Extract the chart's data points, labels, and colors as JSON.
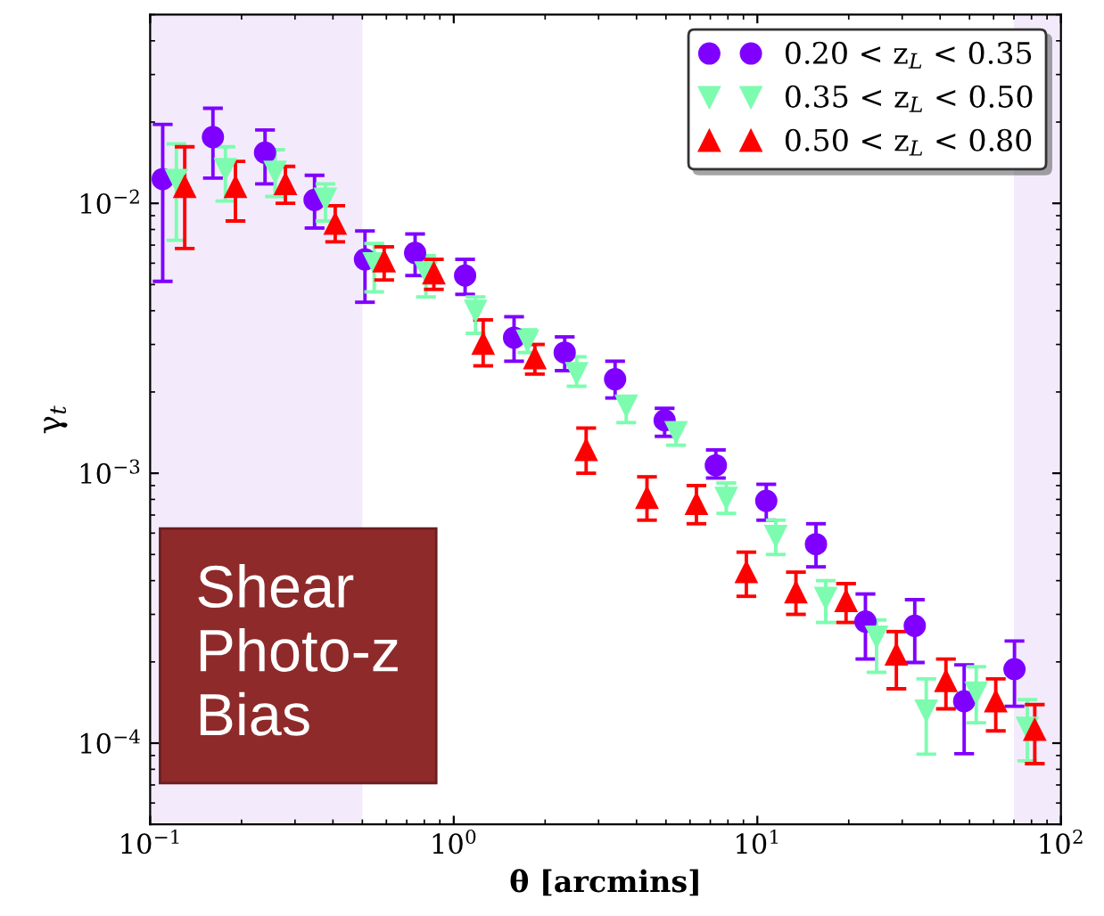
{
  "chart_data": {
    "type": "scatter",
    "xlabel": "θ [arcmins]",
    "ylabel": "γ$_{t}$",
    "log": "xy",
    "xlim": [
      0.1,
      100
    ],
    "ylim": [
      5e-05,
      0.05
    ],
    "xticks": [
      {
        "value": 0.1,
        "label": "10$^{−1}$"
      },
      {
        "value": 1,
        "label": "10$^{0}$"
      },
      {
        "value": 10,
        "label": "10$^{1}$"
      },
      {
        "value": 100,
        "label": "10$^{2}$"
      }
    ],
    "yticks": [
      {
        "value": 0.0001,
        "label": "10$^{−4}$"
      },
      {
        "value": 0.001,
        "label": "10$^{−3}$"
      },
      {
        "value": 0.01,
        "label": "10$^{−2}$"
      }
    ],
    "grid": false,
    "legend": "top right",
    "bands": [
      {
        "axis": "x",
        "from": 0.1,
        "to": 0.5,
        "color": "#f3ebfc"
      },
      {
        "axis": "x",
        "from": 70,
        "to": 100,
        "color": "#f3ebfc"
      }
    ],
    "annotations": [
      "Shear\nPhoto-z\nBias"
    ],
    "series": [
      {
        "name": "0.20 < z$_{L}$ < 0.35",
        "color": "#7f00ff",
        "marker": "circle",
        "x": [
          0.11,
          0.161,
          0.239,
          0.348,
          0.51,
          0.746,
          1.09,
          1.58,
          2.32,
          3.4,
          4.95,
          7.3,
          10.7,
          15.6,
          22.7,
          33,
          48,
          70.3
        ],
        "values": [
          0.0123,
          0.0176,
          0.0154,
          0.0103,
          0.0062,
          0.00655,
          0.0054,
          0.00318,
          0.0028,
          0.00223,
          0.00157,
          0.00107,
          0.00079,
          0.000546,
          0.000282,
          0.000272,
          0.000143,
          0.000188
        ],
        "errors": [
          [
            0.00514,
            0.0196
          ],
          [
            0.0124,
            0.0225
          ],
          [
            0.0118,
            0.0187
          ],
          [
            0.0081,
            0.0127
          ],
          [
            0.0043,
            0.0079
          ],
          [
            0.0054,
            0.0077
          ],
          [
            0.0046,
            0.0062
          ],
          [
            0.0026,
            0.0038
          ],
          [
            0.0024,
            0.0032
          ],
          [
            0.0019,
            0.0026
          ],
          [
            0.00137,
            0.00174
          ],
          [
            0.00096,
            0.00122
          ],
          [
            0.00067,
            0.00091
          ],
          [
            0.00045,
            0.00065
          ],
          [
            0.000205,
            0.000357
          ],
          [
            0.000199,
            0.00034
          ],
          [
            9.14e-05,
            0.000195
          ],
          [
            0.000137,
            0.000239
          ]
        ]
      },
      {
        "name": "0.35 < z$_{L}$ < 0.50",
        "color": "#7dfcb0",
        "marker": "triangle_down",
        "x": [
          0.122,
          0.177,
          0.258,
          0.378,
          0.547,
          0.81,
          1.18,
          1.75,
          2.54,
          3.7,
          5.4,
          7.9,
          11.5,
          16.8,
          24.7,
          36,
          52.6,
          77.5
        ],
        "values": [
          0.0122,
          0.0134,
          0.0131,
          0.0104,
          0.006,
          0.00555,
          0.004,
          0.0031,
          0.00235,
          0.00178,
          0.00142,
          0.00081,
          0.000586,
          0.000345,
          0.000248,
          0.000132,
          0.000154,
          0.000114
        ],
        "errors": [
          [
            0.0073,
            0.0166
          ],
          [
            0.0102,
            0.0162
          ],
          [
            0.0106,
            0.0158
          ],
          [
            0.0086,
            0.0118
          ],
          [
            0.0047,
            0.0071
          ],
          [
            0.0045,
            0.0064
          ],
          [
            0.0033,
            0.0045
          ],
          [
            0.0028,
            0.0034
          ],
          [
            0.0021,
            0.0027
          ],
          [
            0.00154,
            0.0019
          ],
          [
            0.00127,
            0.00153
          ],
          [
            0.00071,
            0.00092
          ],
          [
            0.0005,
            0.00067
          ],
          [
            0.00028,
            0.0004
          ],
          [
            0.000183,
            0.000286
          ],
          [
            9.1e-05,
            0.000173
          ],
          [
            0.000119,
            0.000192
          ],
          [
            8.6e-05,
            0.000145
          ]
        ]
      },
      {
        "name": "0.50 < z$_{L}$ < 0.80",
        "color": "#ff0000",
        "marker": "triangle",
        "x": [
          0.13,
          0.191,
          0.279,
          0.407,
          0.59,
          0.86,
          1.25,
          1.85,
          2.73,
          4.33,
          6.3,
          9.2,
          13.4,
          19.6,
          28.7,
          41.8,
          61,
          82
        ],
        "values": [
          0.0115,
          0.0115,
          0.0118,
          0.0084,
          0.0061,
          0.0055,
          0.00302,
          0.00267,
          0.00122,
          0.00081,
          0.00077,
          0.00043,
          0.000362,
          0.000336,
          0.000213,
          0.00017,
          0.000143,
          0.000112
        ],
        "errors": [
          [
            0.0068,
            0.0162
          ],
          [
            0.0086,
            0.0143
          ],
          [
            0.01,
            0.0137
          ],
          [
            0.0072,
            0.0098
          ],
          [
            0.0052,
            0.0069
          ],
          [
            0.0048,
            0.0062
          ],
          [
            0.0025,
            0.0037
          ],
          [
            0.00233,
            0.003
          ],
          [
            0.001,
            0.00147
          ],
          [
            0.00067,
            0.00097
          ],
          [
            0.00065,
            0.0009
          ],
          [
            0.00035,
            0.00051
          ],
          [
            0.0003,
            0.00043
          ],
          [
            0.00028,
            0.00039
          ],
          [
            0.000159,
            0.000259
          ],
          [
            0.000134,
            0.000205
          ],
          [
            0.000111,
            0.000173
          ],
          [
            8.4e-05,
            0.000139
          ]
        ]
      }
    ]
  }
}
